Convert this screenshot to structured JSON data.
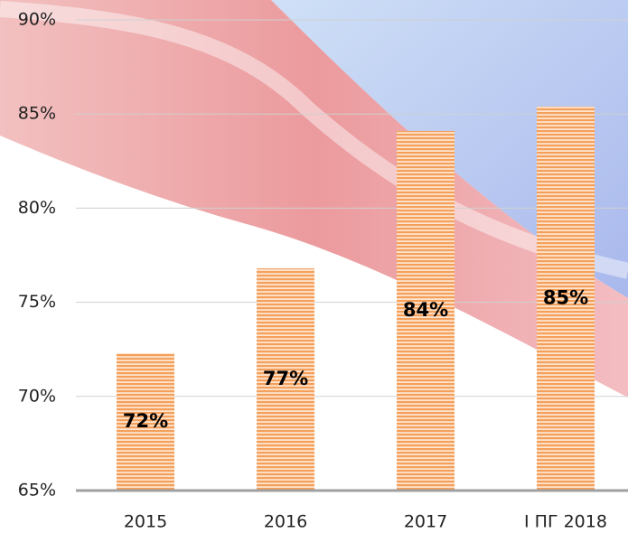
{
  "chart_data": {
    "type": "bar",
    "categories": [
      "2015",
      "2016",
      "2017",
      "I ПГ 2018"
    ],
    "values": [
      72.3,
      76.8,
      84.1,
      85.4
    ],
    "value_labels": [
      "72%",
      "77%",
      "84%",
      "85%"
    ],
    "color": "#f5a05a",
    "ylim": [
      65,
      90
    ],
    "yticks": [
      {
        "value": 65,
        "label": "65%"
      },
      {
        "value": 70,
        "label": "70%"
      },
      {
        "value": 75,
        "label": "75%"
      },
      {
        "value": 80,
        "label": "80%"
      },
      {
        "value": 85,
        "label": "85%"
      },
      {
        "value": 90,
        "label": "90%"
      }
    ],
    "grid": true
  }
}
